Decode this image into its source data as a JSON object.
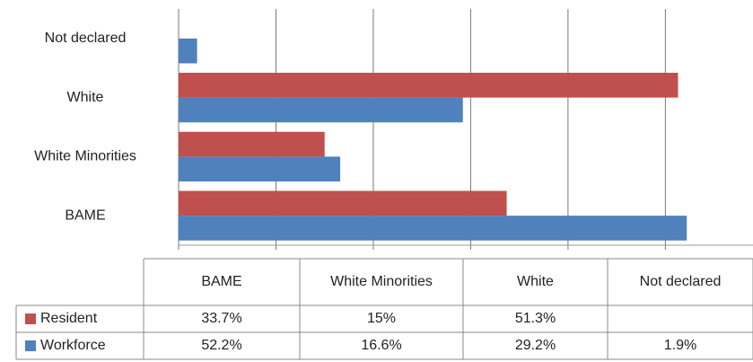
{
  "chart_data": {
    "type": "bar",
    "orientation": "horizontal",
    "categories": [
      "BAME",
      "White Minorities",
      "White",
      "Not declared"
    ],
    "series": [
      {
        "name": "Resident",
        "color": "#c0504d",
        "values": [
          33.7,
          15,
          51.3,
          null
        ],
        "value_labels": [
          "33.7%",
          "15%",
          "51.3%",
          null
        ]
      },
      {
        "name": "Workforce",
        "color": "#4f81bd",
        "values": [
          52.2,
          16.6,
          29.2,
          1.9
        ],
        "value_labels": [
          "52.2%",
          "16.6%",
          "29.2%",
          "1.9%"
        ]
      }
    ],
    "xlim": [
      0,
      59
    ],
    "xticks": [
      0,
      10,
      20,
      30,
      40,
      50
    ],
    "grid": true,
    "data_table": true
  }
}
